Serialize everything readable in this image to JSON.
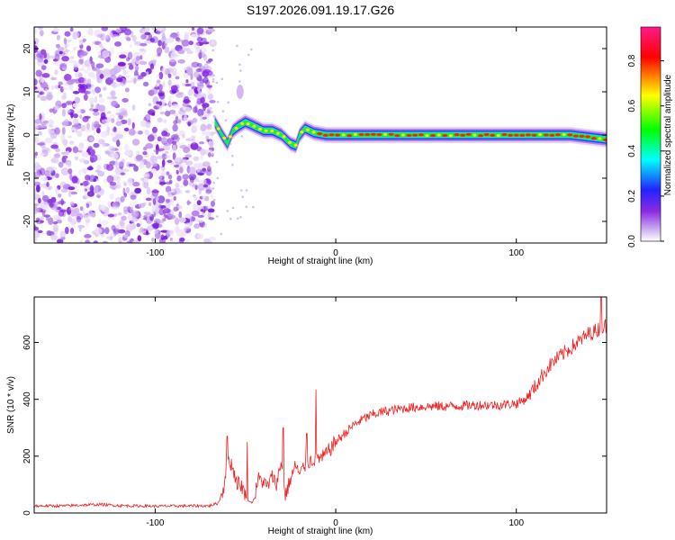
{
  "title": "S197.2026.091.19.17.G26",
  "chart_data": [
    {
      "type": "heatmap",
      "title": "S197.2026.091.19.17.G26",
      "xlabel": "Height of straight line (km)",
      "ylabel": "Frequency (Hz)",
      "xlim": [
        -167,
        150
      ],
      "ylim": [
        -25,
        25
      ],
      "xticks": [
        -100,
        0,
        100
      ],
      "xtick_labels": [
        "-100",
        "0",
        "100"
      ],
      "yticks": [
        -20,
        -10,
        0,
        10,
        20
      ],
      "ytick_labels": [
        "-20",
        "-10",
        "0",
        "10",
        "20"
      ],
      "noise_region_x": [
        -167,
        -68
      ],
      "signal_trace": {
        "x": [
          -67,
          -63,
          -60,
          -57,
          -54,
          -50,
          -45,
          -40,
          -35,
          -30,
          -25,
          -22,
          -20,
          -17,
          -12,
          -5,
          0,
          10,
          20,
          30,
          40,
          50,
          60,
          70,
          80,
          90,
          100,
          110,
          120,
          130,
          140,
          150
        ],
        "y": [
          3,
          0,
          -2,
          1,
          2,
          3,
          2,
          1,
          1,
          0,
          -2,
          -2.5,
          0,
          1.5,
          0.5,
          0,
          0,
          0,
          0,
          0,
          0,
          0,
          0,
          0,
          0,
          0,
          0,
          0,
          0,
          0,
          -0.5,
          -1
        ]
      },
      "colorbar": {
        "label": "Normalized spectral amplitude",
        "range": [
          0,
          0.95
        ],
        "ticks": [
          0,
          0.2,
          0.4,
          0.6,
          0.8
        ],
        "tick_labels": [
          "0.0",
          "0.2",
          "0.4",
          "0.6",
          "0.8"
        ],
        "colors": [
          "#ffffff",
          "#8a2be2",
          "#0000ff",
          "#00ffff",
          "#00ff00",
          "#ffff00",
          "#ff0000",
          "#ff1a8c"
        ]
      }
    },
    {
      "type": "line",
      "xlabel": "Height of straight line (km)",
      "ylabel": "SNR (10 * v/v)",
      "xlim": [
        -167,
        150
      ],
      "ylim": [
        0,
        760
      ],
      "xticks": [
        -100,
        0,
        100
      ],
      "xtick_labels": [
        "-100",
        "0",
        "100"
      ],
      "yticks": [
        0,
        200,
        400,
        600
      ],
      "ytick_labels": [
        "0",
        "200",
        "400",
        "600"
      ],
      "series": [
        {
          "name": "SNR",
          "color": "#ee2222",
          "x": [
            -167,
            -150,
            -140,
            -130,
            -120,
            -100,
            -80,
            -70,
            -65,
            -62,
            -60,
            -57,
            -55,
            -52,
            -50,
            -47,
            -45,
            -43,
            -40,
            -38,
            -35,
            -33,
            -30,
            -28,
            -25,
            -22,
            -20,
            -18,
            -15,
            -12,
            -10,
            -8,
            -5,
            0,
            5,
            10,
            15,
            20,
            25,
            30,
            40,
            50,
            60,
            70,
            80,
            90,
            100,
            105,
            110,
            115,
            120,
            130,
            140,
            150
          ],
          "y": [
            25,
            25,
            28,
            30,
            26,
            24,
            25,
            25,
            35,
            90,
            200,
            160,
            110,
            95,
            60,
            35,
            50,
            120,
            110,
            90,
            130,
            100,
            180,
            60,
            120,
            170,
            130,
            160,
            180,
            190,
            200,
            190,
            210,
            250,
            280,
            310,
            330,
            345,
            355,
            360,
            370,
            375,
            375,
            378,
            380,
            380,
            385,
            400,
            440,
            490,
            530,
            580,
            630,
            660
          ],
          "spikes": [
            {
              "x": -60,
              "y": 270
            },
            {
              "x": -49,
              "y": 250
            },
            {
              "x": -29,
              "y": 300
            },
            {
              "x": -16,
              "y": 280
            },
            {
              "x": -11,
              "y": 435
            },
            {
              "x": 147,
              "y": 760
            }
          ]
        }
      ]
    }
  ]
}
